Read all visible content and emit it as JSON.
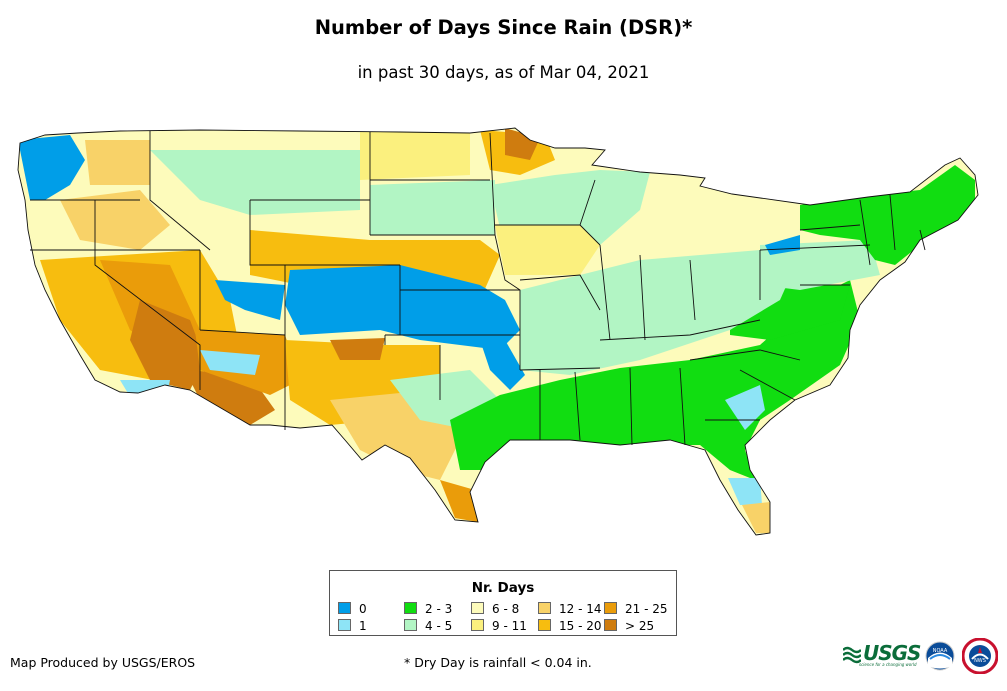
{
  "title": "Number of Days Since Rain (DSR)*",
  "subtitle": "in past 30 days, as of Mar 04, 2021",
  "legend": {
    "title": "Nr. Days",
    "items": [
      {
        "label": "0",
        "color": "#009ee8"
      },
      {
        "label": "1",
        "color": "#8ee4f6"
      },
      {
        "label": "2 - 3",
        "color": "#11dd11"
      },
      {
        "label": "4 - 5",
        "color": "#b2f5c4"
      },
      {
        "label": "6 - 8",
        "color": "#fdfbbb"
      },
      {
        "label": "9 - 11",
        "color": "#fbf07e"
      },
      {
        "label": "12 - 14",
        "color": "#f8d268"
      },
      {
        "label": "15 - 20",
        "color": "#f7bd0f"
      },
      {
        "label": "21 - 25",
        "color": "#ea9c0a"
      },
      {
        "label": "> 25",
        "color": "#cf7c0f"
      }
    ]
  },
  "credit": "Map Produced by USGS/EROS",
  "footnote": "* Dry Day is rainfall < 0.04 in.",
  "logos": {
    "usgs": "USGS",
    "usgs_tagline": "science for a changing world",
    "noaa": "NOAA",
    "nws": "NWS"
  }
}
